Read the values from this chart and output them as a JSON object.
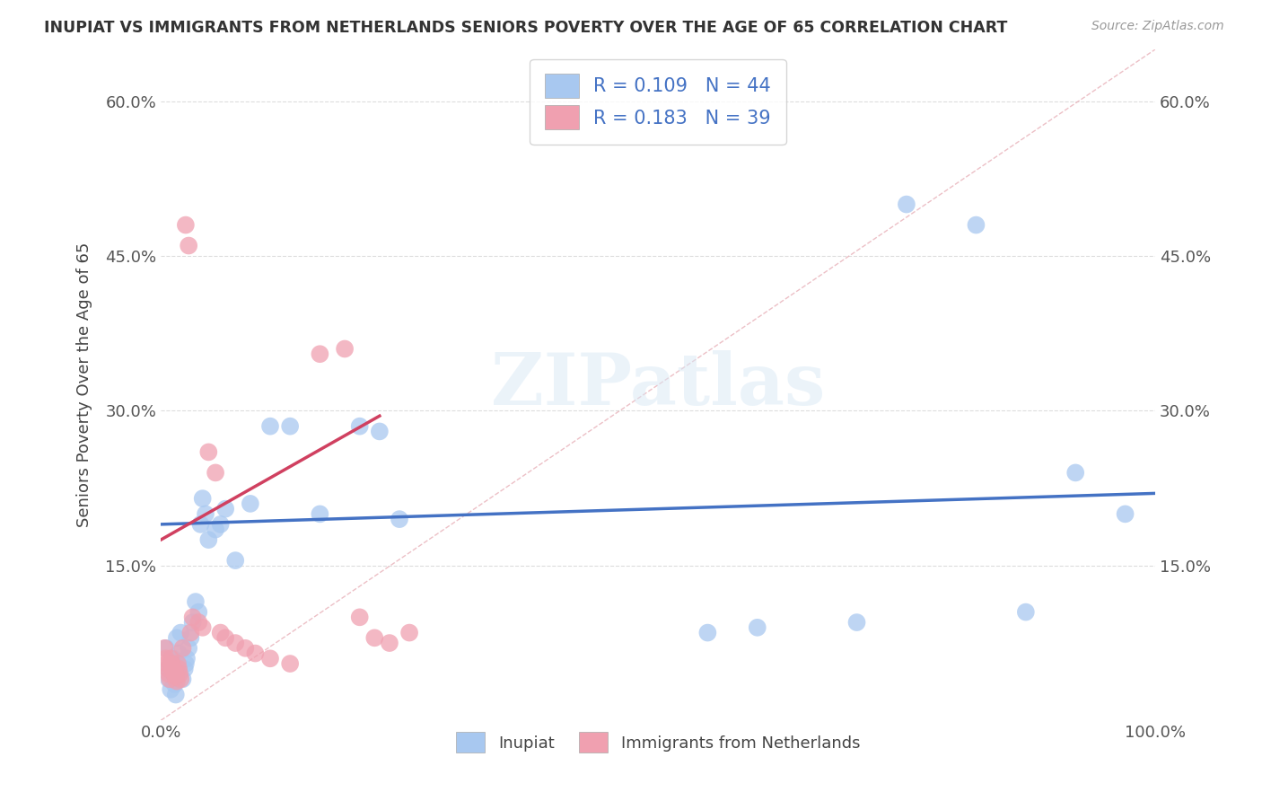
{
  "title": "INUPIAT VS IMMIGRANTS FROM NETHERLANDS SENIORS POVERTY OVER THE AGE OF 65 CORRELATION CHART",
  "source": "Source: ZipAtlas.com",
  "ylabel": "Seniors Poverty Over the Age of 65",
  "legend_label_1": "Inupiat",
  "legend_label_2": "Immigrants from Netherlands",
  "R1": 0.109,
  "N1": 44,
  "R2": 0.183,
  "N2": 39,
  "color1": "#A8C8F0",
  "color2": "#F0A0B0",
  "trendline1_color": "#4472C4",
  "trendline2_color": "#D04060",
  "diag_color": "#E8B0B8",
  "xlim": [
    0,
    1.0
  ],
  "ylim": [
    0,
    0.65
  ],
  "watermark": "ZIPatlas",
  "background_color": "#FFFFFF",
  "grid_color": "#DDDDDD",
  "inupiat_x": [
    0.005,
    0.007,
    0.008,
    0.01,
    0.01,
    0.012,
    0.013,
    0.014,
    0.015,
    0.016,
    0.018,
    0.02,
    0.022,
    0.024,
    0.025,
    0.026,
    0.028,
    0.03,
    0.032,
    0.035,
    0.038,
    0.04,
    0.042,
    0.045,
    0.048,
    0.055,
    0.06,
    0.065,
    0.075,
    0.09,
    0.11,
    0.13,
    0.16,
    0.2,
    0.22,
    0.24,
    0.55,
    0.6,
    0.7,
    0.75,
    0.82,
    0.87,
    0.92,
    0.97
  ],
  "inupiat_y": [
    0.07,
    0.05,
    0.04,
    0.055,
    0.03,
    0.06,
    0.045,
    0.035,
    0.025,
    0.08,
    0.065,
    0.085,
    0.04,
    0.05,
    0.055,
    0.06,
    0.07,
    0.08,
    0.095,
    0.115,
    0.105,
    0.19,
    0.215,
    0.2,
    0.175,
    0.185,
    0.19,
    0.205,
    0.155,
    0.21,
    0.285,
    0.285,
    0.2,
    0.285,
    0.28,
    0.195,
    0.085,
    0.09,
    0.095,
    0.5,
    0.48,
    0.105,
    0.24,
    0.2
  ],
  "netherlands_x": [
    0.004,
    0.005,
    0.006,
    0.007,
    0.008,
    0.009,
    0.01,
    0.011,
    0.012,
    0.013,
    0.014,
    0.015,
    0.016,
    0.017,
    0.018,
    0.019,
    0.02,
    0.022,
    0.025,
    0.028,
    0.03,
    0.032,
    0.038,
    0.042,
    0.048,
    0.055,
    0.06,
    0.065,
    0.075,
    0.085,
    0.095,
    0.11,
    0.13,
    0.16,
    0.185,
    0.2,
    0.215,
    0.23,
    0.25
  ],
  "netherlands_y": [
    0.07,
    0.06,
    0.055,
    0.05,
    0.045,
    0.04,
    0.06,
    0.055,
    0.05,
    0.048,
    0.045,
    0.042,
    0.038,
    0.055,
    0.05,
    0.045,
    0.04,
    0.07,
    0.48,
    0.46,
    0.085,
    0.1,
    0.095,
    0.09,
    0.26,
    0.24,
    0.085,
    0.08,
    0.075,
    0.07,
    0.065,
    0.06,
    0.055,
    0.355,
    0.36,
    0.1,
    0.08,
    0.075,
    0.085
  ]
}
